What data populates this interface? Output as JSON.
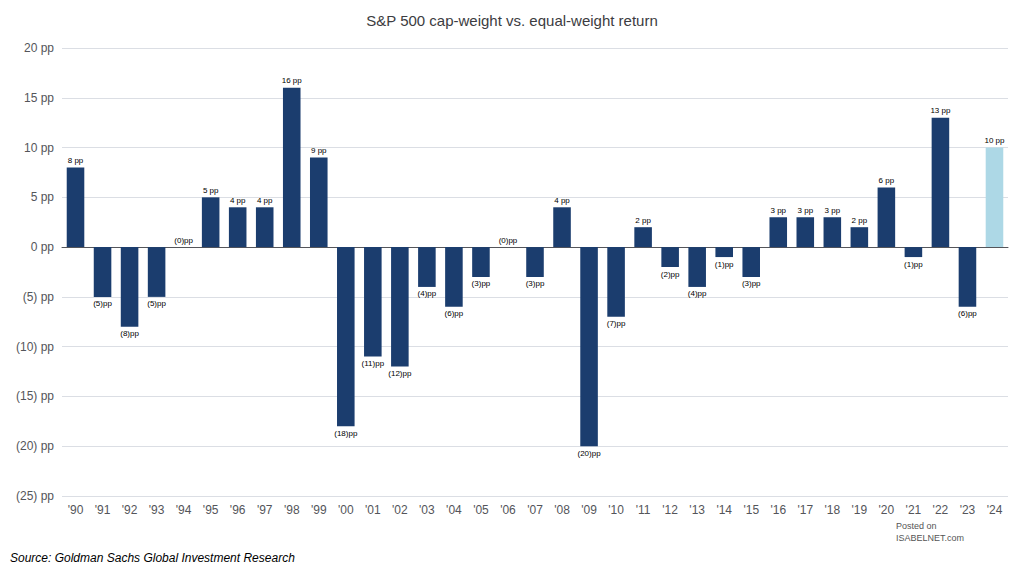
{
  "chart_data": {
    "type": "bar",
    "title": "S&P 500 cap-weight vs. equal-weight return",
    "categories": [
      "'90",
      "'91",
      "'92",
      "'93",
      "'94",
      "'95",
      "'96",
      "'97",
      "'98",
      "'99",
      "'00",
      "'01",
      "'02",
      "'03",
      "'04",
      "'05",
      "'06",
      "'07",
      "'08",
      "'09",
      "'10",
      "'11",
      "'12",
      "'13",
      "'14",
      "'15",
      "'16",
      "'17",
      "'18",
      "'19",
      "'20",
      "'21",
      "'22",
      "'23",
      "'24"
    ],
    "values": [
      8,
      -5,
      -8,
      -5,
      0,
      5,
      4,
      4,
      16,
      9,
      -18,
      -11,
      -12,
      -4,
      -6,
      -3,
      0,
      -3,
      4,
      -20,
      -7,
      2,
      -2,
      -4,
      -1,
      -3,
      3,
      3,
      3,
      2,
      6,
      -1,
      13,
      -6,
      10
    ],
    "value_labels": [
      "8 pp",
      "(5)pp",
      "(8)pp",
      "(5)pp",
      "(0)pp",
      "5 pp",
      "4 pp",
      "4 pp",
      "16 pp",
      "9 pp",
      "(18)pp",
      "(11)pp",
      "(12)pp",
      "(4)pp",
      "(6)pp",
      "(3)pp",
      "(0)pp",
      "(3)pp",
      "4 pp",
      "(20)pp",
      "(7)pp",
      "2 pp",
      "(2)pp",
      "(4)pp",
      "(1)pp",
      "(3)pp",
      "3 pp",
      "3 pp",
      "3 pp",
      "2 pp",
      "6 pp",
      "(1)pp",
      "13 pp",
      "(6)pp",
      "10 pp"
    ],
    "colors": [
      "#1b3d6e",
      "#1b3d6e",
      "#1b3d6e",
      "#1b3d6e",
      "#1b3d6e",
      "#1b3d6e",
      "#1b3d6e",
      "#1b3d6e",
      "#1b3d6e",
      "#1b3d6e",
      "#1b3d6e",
      "#1b3d6e",
      "#1b3d6e",
      "#1b3d6e",
      "#1b3d6e",
      "#1b3d6e",
      "#1b3d6e",
      "#1b3d6e",
      "#1b3d6e",
      "#1b3d6e",
      "#1b3d6e",
      "#1b3d6e",
      "#1b3d6e",
      "#1b3d6e",
      "#1b3d6e",
      "#1b3d6e",
      "#1b3d6e",
      "#1b3d6e",
      "#1b3d6e",
      "#1b3d6e",
      "#1b3d6e",
      "#1b3d6e",
      "#1b3d6e",
      "#1b3d6e",
      "#add8e6"
    ],
    "data_labels": true,
    "ylim": [
      -25,
      20
    ],
    "yticks": [
      {
        "value": -25,
        "label": "(25) pp"
      },
      {
        "value": -20,
        "label": "(20) pp"
      },
      {
        "value": -15,
        "label": "(15) pp"
      },
      {
        "value": -10,
        "label": "(10) pp"
      },
      {
        "value": -5,
        "label": "(5) pp"
      },
      {
        "value": 0,
        "label": "0 pp"
      },
      {
        "value": 5,
        "label": "5 pp"
      },
      {
        "value": 10,
        "label": "10 pp"
      },
      {
        "value": 15,
        "label": "15 pp"
      },
      {
        "value": 20,
        "label": "20 pp"
      }
    ],
    "grid": true,
    "annotations": [
      "Source: Goldman Sachs Global Investment Research",
      "Posted on\nISABELNET.com"
    ]
  }
}
